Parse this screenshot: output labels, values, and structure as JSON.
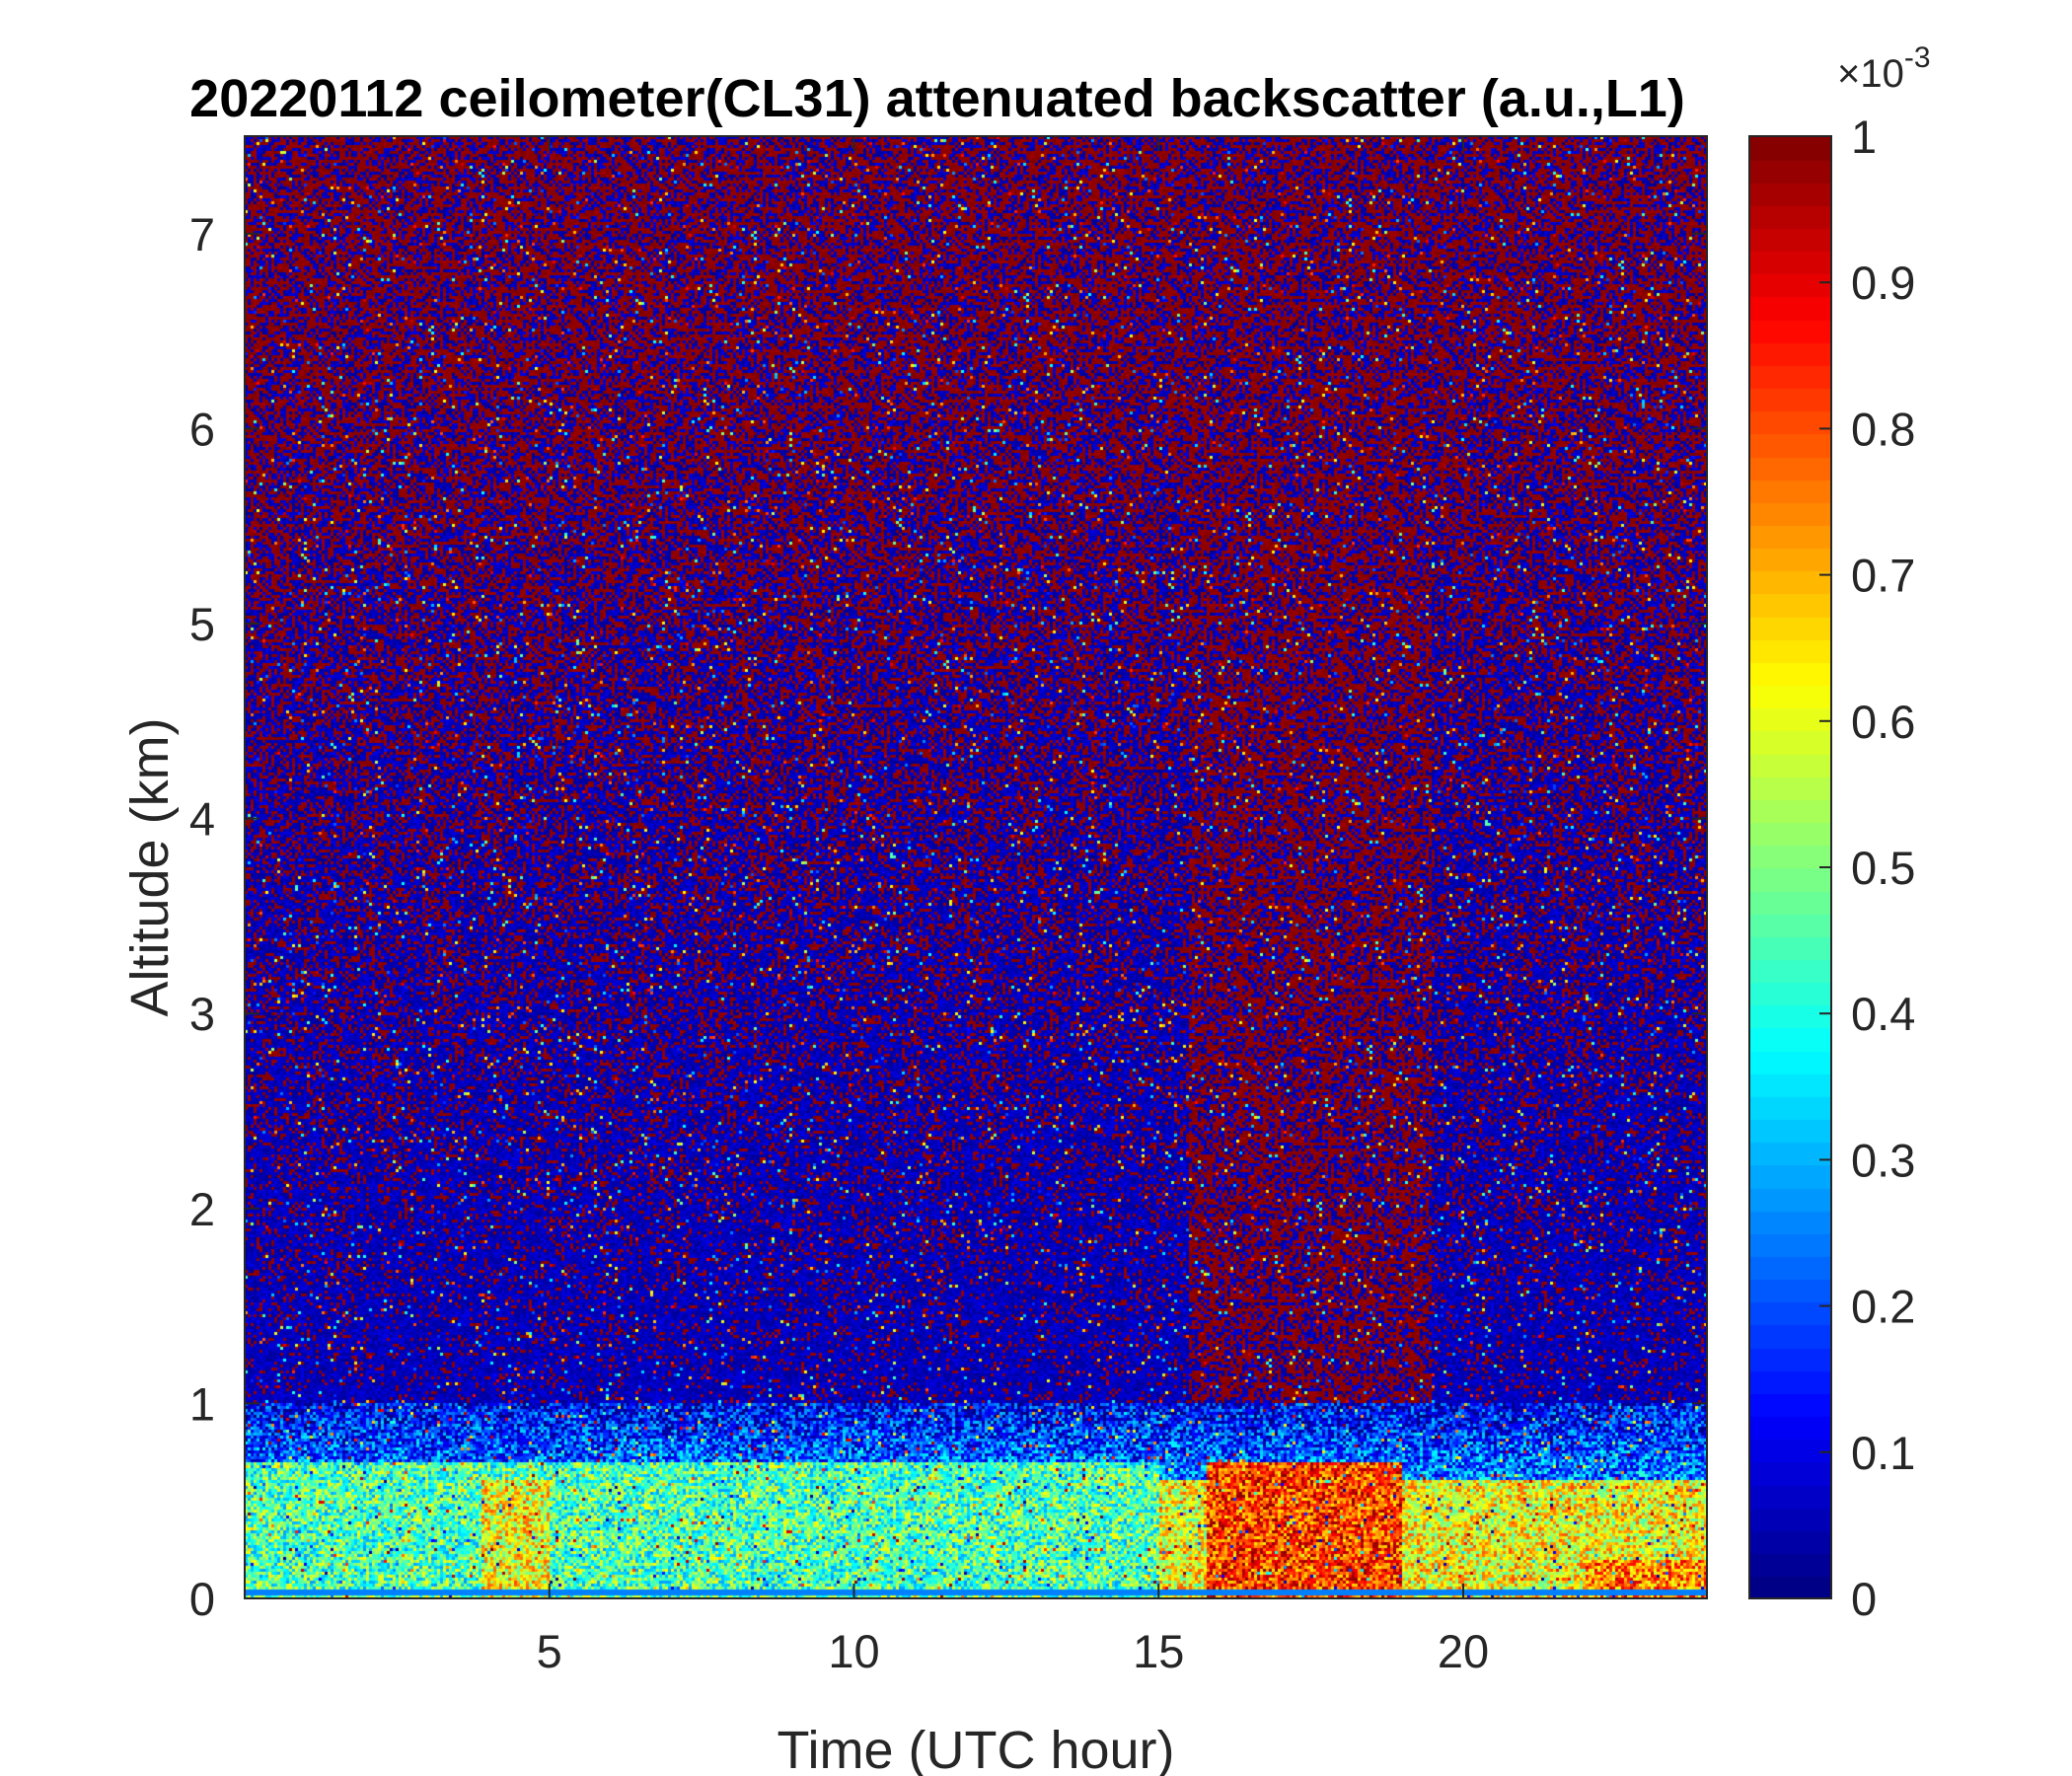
{
  "chart_data": {
    "type": "heatmap",
    "title": "20220112 ceilometer(CL31) attenuated backscatter (a.u.,L1)",
    "xlabel": "Time (UTC hour)",
    "ylabel": "Altitude (km)",
    "xlim": [
      0,
      24
    ],
    "ylim": [
      0,
      7.5
    ],
    "x_ticks": [
      5,
      10,
      15,
      20
    ],
    "y_ticks": [
      0,
      1,
      2,
      3,
      4,
      5,
      6,
      7
    ],
    "colorbar": {
      "colormap": "jet",
      "clim": [
        0,
        1
      ],
      "ticks": [
        0,
        0.1,
        0.2,
        0.3,
        0.4,
        0.5,
        0.6,
        0.7,
        0.8,
        0.9,
        1
      ],
      "exponent_base": "×10",
      "exponent": "-3"
    },
    "features": [
      {
        "t_start": 0,
        "t_end": 15,
        "z_top_km": 0.7,
        "level": 0.45
      },
      {
        "t_start": 3.9,
        "t_end": 5.0,
        "z_top_km": 0.6,
        "level": 0.62
      },
      {
        "t_start": 15,
        "t_end": 24,
        "z_top_km": 0.6,
        "level": 0.62
      },
      {
        "t_start": 15.8,
        "t_end": 19.0,
        "z_top_km": 0.7,
        "level": 0.82
      },
      {
        "t_start": 22.0,
        "t_end": 24,
        "z_top_km": 0.2,
        "level": 0.75
      },
      {
        "t_start": 15.5,
        "t_end": 19.5,
        "z_top_km": 7.5,
        "level": 0.55
      }
    ]
  }
}
